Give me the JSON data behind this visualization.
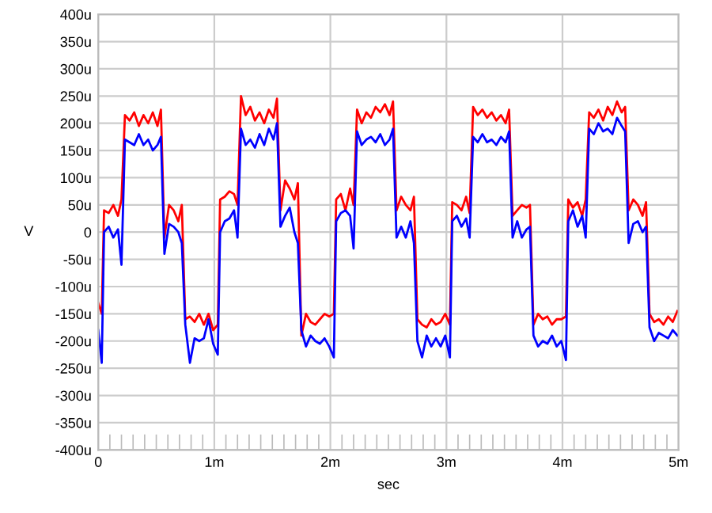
{
  "chart_data": {
    "type": "line",
    "xlabel": "sec",
    "ylabel": "V",
    "x": [
      0,
      0.03,
      0.05,
      0.09,
      0.13,
      0.17,
      0.2,
      0.23,
      0.27,
      0.31,
      0.35,
      0.39,
      0.43,
      0.47,
      0.51,
      0.54,
      0.57,
      0.61,
      0.65,
      0.69,
      0.72,
      0.75,
      0.79,
      0.83,
      0.87,
      0.91,
      0.95,
      0.99,
      1.03,
      1.05,
      1.09,
      1.13,
      1.17,
      1.2,
      1.23,
      1.27,
      1.31,
      1.35,
      1.39,
      1.43,
      1.47,
      1.51,
      1.54,
      1.57,
      1.61,
      1.65,
      1.69,
      1.72,
      1.75,
      1.79,
      1.83,
      1.87,
      1.91,
      1.95,
      1.99,
      2.03,
      2.05,
      2.09,
      2.13,
      2.17,
      2.2,
      2.23,
      2.27,
      2.31,
      2.35,
      2.39,
      2.43,
      2.47,
      2.51,
      2.54,
      2.57,
      2.61,
      2.65,
      2.69,
      2.72,
      2.75,
      2.79,
      2.83,
      2.87,
      2.91,
      2.95,
      2.99,
      3.03,
      3.05,
      3.09,
      3.13,
      3.17,
      3.2,
      3.23,
      3.27,
      3.31,
      3.35,
      3.39,
      3.43,
      3.47,
      3.51,
      3.54,
      3.57,
      3.61,
      3.65,
      3.69,
      3.72,
      3.75,
      3.79,
      3.83,
      3.87,
      3.91,
      3.95,
      3.99,
      4.03,
      4.05,
      4.09,
      4.13,
      4.17,
      4.2,
      4.23,
      4.27,
      4.31,
      4.35,
      4.39,
      4.43,
      4.47,
      4.51,
      4.54,
      4.57,
      4.61,
      4.65,
      4.69,
      4.72,
      4.75,
      4.79,
      4.83,
      4.87,
      4.91,
      4.95,
      4.99
    ],
    "series": [
      {
        "color": "#ff0000",
        "values": [
          -130,
          -150,
          40,
          35,
          50,
          30,
          60,
          215,
          205,
          220,
          195,
          215,
          200,
          220,
          195,
          225,
          -10,
          50,
          40,
          20,
          50,
          -160,
          -155,
          -165,
          -150,
          -170,
          -150,
          -180,
          -170,
          60,
          65,
          75,
          70,
          50,
          250,
          215,
          230,
          205,
          220,
          200,
          225,
          210,
          245,
          40,
          95,
          80,
          60,
          90,
          -190,
          -150,
          -165,
          -170,
          -160,
          -150,
          -155,
          -150,
          60,
          70,
          40,
          80,
          50,
          225,
          200,
          220,
          210,
          230,
          220,
          235,
          215,
          240,
          40,
          65,
          50,
          40,
          65,
          -160,
          -170,
          -175,
          -160,
          -170,
          -165,
          -150,
          -170,
          55,
          50,
          40,
          65,
          35,
          230,
          215,
          225,
          210,
          220,
          205,
          215,
          200,
          225,
          30,
          40,
          50,
          45,
          50,
          -170,
          -150,
          -160,
          -155,
          -170,
          -160,
          -160,
          -155,
          60,
          45,
          55,
          30,
          60,
          220,
          210,
          225,
          205,
          230,
          215,
          240,
          220,
          230,
          40,
          60,
          50,
          30,
          55,
          -150,
          -165,
          -160,
          -170,
          -155,
          -165,
          -145
        ]
      },
      {
        "color": "#0000ff",
        "values": [
          -180,
          -240,
          0,
          10,
          -10,
          5,
          -60,
          170,
          165,
          160,
          180,
          160,
          170,
          150,
          160,
          175,
          -40,
          15,
          10,
          0,
          -20,
          -170,
          -240,
          -195,
          -200,
          -195,
          -160,
          -205,
          -225,
          0,
          20,
          25,
          40,
          -10,
          190,
          160,
          170,
          155,
          180,
          160,
          190,
          170,
          200,
          10,
          30,
          45,
          0,
          -20,
          -180,
          -210,
          -190,
          -200,
          -205,
          -195,
          -210,
          -230,
          20,
          35,
          40,
          30,
          -30,
          185,
          160,
          170,
          175,
          165,
          180,
          160,
          170,
          190,
          -10,
          10,
          -10,
          20,
          -20,
          -200,
          -230,
          -190,
          -210,
          -195,
          -210,
          -190,
          -230,
          20,
          30,
          10,
          25,
          -10,
          175,
          165,
          180,
          165,
          170,
          160,
          175,
          165,
          185,
          -10,
          20,
          -10,
          5,
          10,
          -190,
          -210,
          -200,
          -205,
          -190,
          -210,
          -200,
          -235,
          20,
          40,
          10,
          30,
          -10,
          190,
          180,
          200,
          185,
          190,
          180,
          210,
          195,
          185,
          -20,
          15,
          20,
          0,
          10,
          -175,
          -200,
          -185,
          -190,
          -195,
          -180,
          -190
        ]
      }
    ],
    "xlim": [
      0,
      5
    ],
    "xticks": [
      0,
      {
        "value": 1,
        "label": "1m"
      },
      {
        "value": 2,
        "label": "2m"
      },
      {
        "value": 3,
        "label": "3m"
      },
      {
        "value": 4,
        "label": "4m"
      },
      {
        "value": 5,
        "label": "5m"
      }
    ],
    "ylim": [
      -400,
      400
    ],
    "yticks": [
      {
        "value": -400,
        "label": "-400u"
      },
      {
        "value": -350,
        "label": "-350u"
      },
      {
        "value": -300,
        "label": "-300u"
      },
      {
        "value": -250,
        "label": "-250u"
      },
      {
        "value": -200,
        "label": "-200u"
      },
      {
        "value": -150,
        "label": "-150u"
      },
      {
        "value": -100,
        "label": "-100u"
      },
      {
        "value": -50,
        "label": "-50u"
      },
      0,
      {
        "value": 50,
        "label": "50u"
      },
      {
        "value": 100,
        "label": "100u"
      },
      {
        "value": 150,
        "label": "150u"
      },
      {
        "value": 200,
        "label": "200u"
      },
      {
        "value": 250,
        "label": "250u"
      },
      {
        "value": 300,
        "label": "300u"
      },
      {
        "value": 350,
        "label": "350u"
      },
      {
        "value": 400,
        "label": "400u"
      }
    ],
    "grid": true,
    "line_style": "solid",
    "marker": "none"
  }
}
